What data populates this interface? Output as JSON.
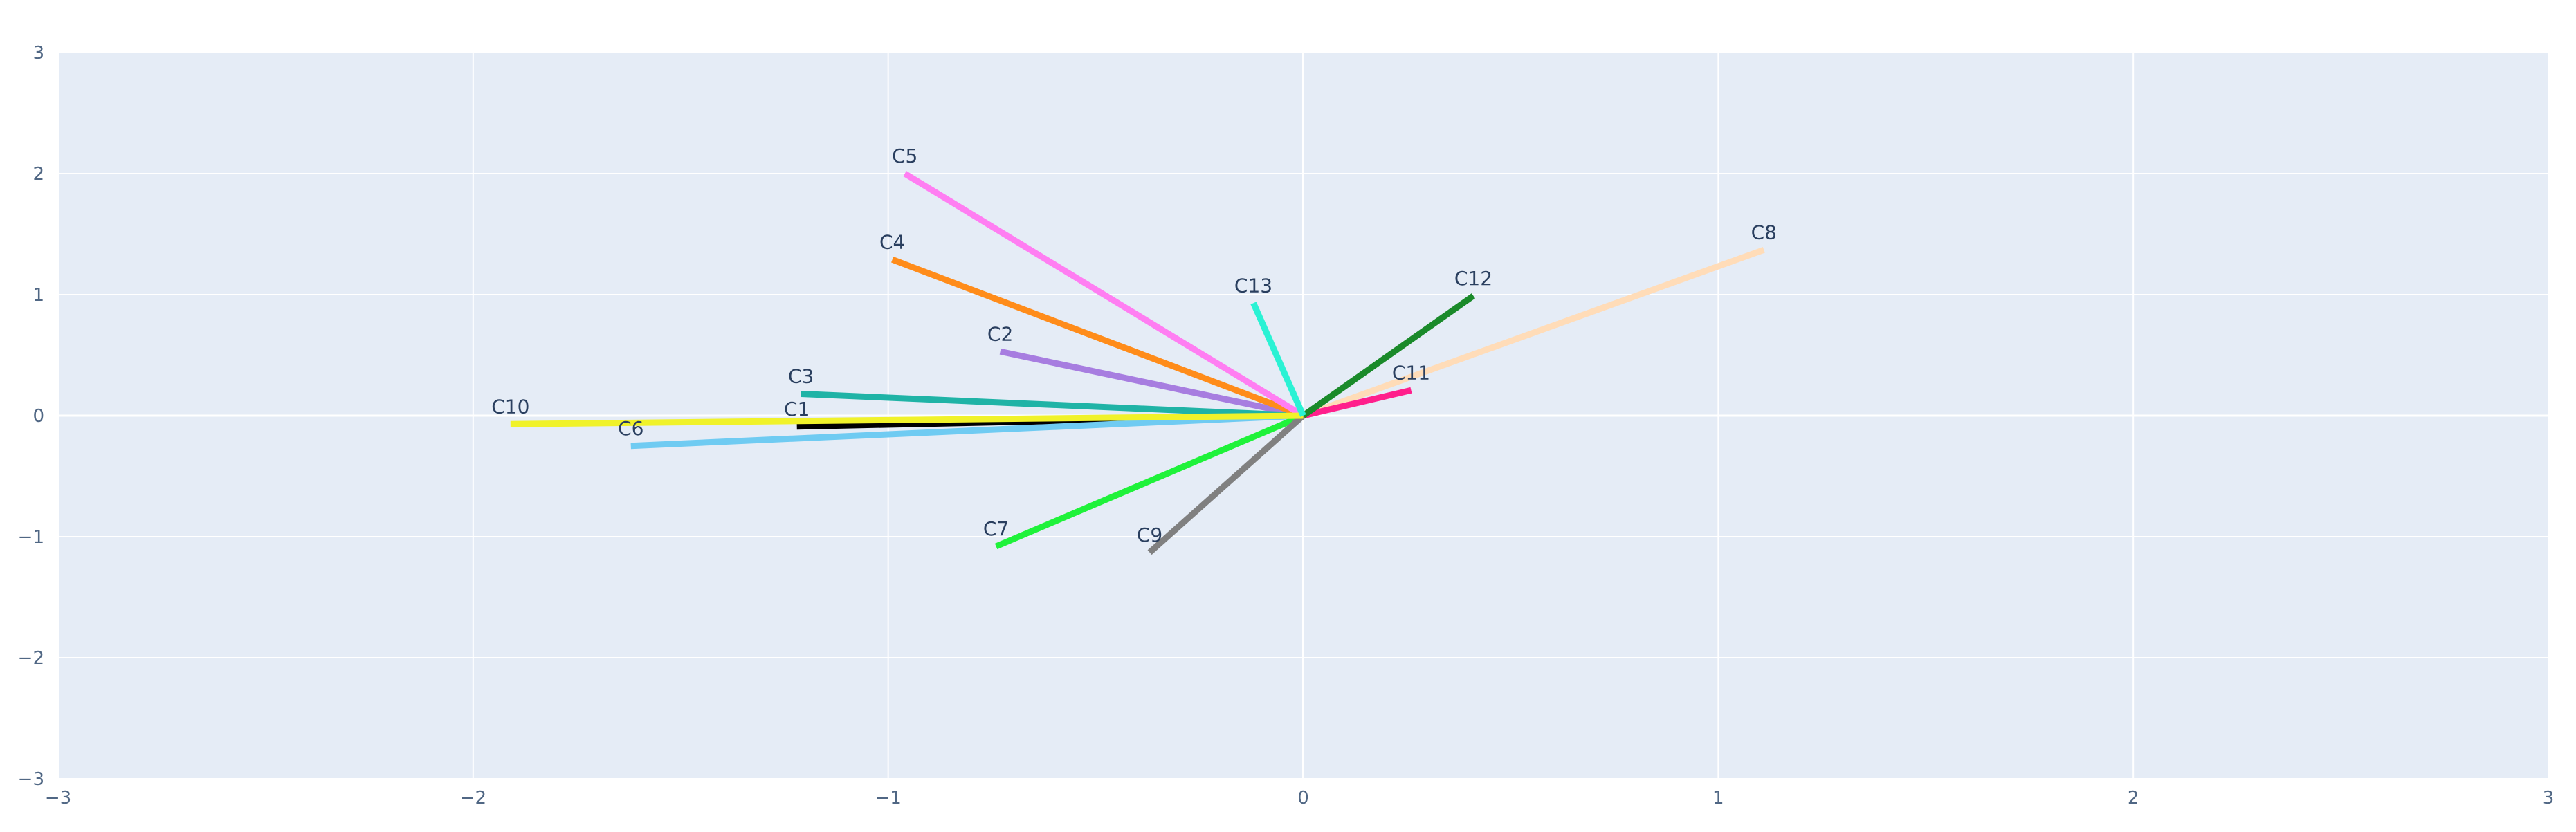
{
  "chart_data": {
    "type": "line",
    "title": "",
    "xlabel": "",
    "ylabel": "",
    "xlim": [
      -3,
      3
    ],
    "ylim": [
      -3,
      3
    ],
    "x_ticks": [
      -3,
      -2,
      -1,
      0,
      1,
      2,
      3
    ],
    "y_ticks": [
      -3,
      -2,
      -1,
      0,
      1,
      2,
      3
    ],
    "x_tick_labels": [
      "−3",
      "−2",
      "−1",
      "0",
      "1",
      "2",
      "3"
    ],
    "y_tick_labels": [
      "−3",
      "−2",
      "−1",
      "0",
      "1",
      "2",
      "3"
    ],
    "grid": true,
    "background_color": "#e5ecf6",
    "grid_color": "#ffffff",
    "series": [
      {
        "name": "C1",
        "x": [
          0,
          -1.22
        ],
        "y": [
          0,
          -0.09
        ],
        "color": "#000000"
      },
      {
        "name": "C2",
        "x": [
          0,
          -0.73
        ],
        "y": [
          0,
          0.53
        ],
        "color": "#a77de0"
      },
      {
        "name": "C3",
        "x": [
          0,
          -1.21
        ],
        "y": [
          0,
          0.18
        ],
        "color": "#1fb3a6"
      },
      {
        "name": "C4",
        "x": [
          0,
          -0.99
        ],
        "y": [
          0,
          1.29
        ],
        "color": "#ff8c1a"
      },
      {
        "name": "C5",
        "x": [
          0,
          -0.96
        ],
        "y": [
          0,
          2.0
        ],
        "color": "#ff7ef2"
      },
      {
        "name": "C6",
        "x": [
          0,
          -1.62
        ],
        "y": [
          0,
          -0.25
        ],
        "color": "#6fcbf2"
      },
      {
        "name": "C7",
        "x": [
          0,
          -0.74
        ],
        "y": [
          0,
          -1.08
        ],
        "color": "#1ff23a"
      },
      {
        "name": "C8",
        "x": [
          0,
          1.11
        ],
        "y": [
          0,
          1.37
        ],
        "color": "#ffdcb8"
      },
      {
        "name": "C9",
        "x": [
          0,
          -0.37
        ],
        "y": [
          0,
          -1.13
        ],
        "color": "#808080"
      },
      {
        "name": "C10",
        "x": [
          0,
          -1.91
        ],
        "y": [
          0,
          -0.07
        ],
        "color": "#f0f22a"
      },
      {
        "name": "C11",
        "x": [
          0,
          0.26
        ],
        "y": [
          0,
          0.21
        ],
        "color": "#ff1f8c"
      },
      {
        "name": "C12",
        "x": [
          0,
          0.41
        ],
        "y": [
          0,
          0.99
        ],
        "color": "#1a8a2a"
      },
      {
        "name": "C13",
        "x": [
          0,
          -0.12
        ],
        "y": [
          0,
          0.93
        ],
        "color": "#2af2d4"
      }
    ]
  }
}
